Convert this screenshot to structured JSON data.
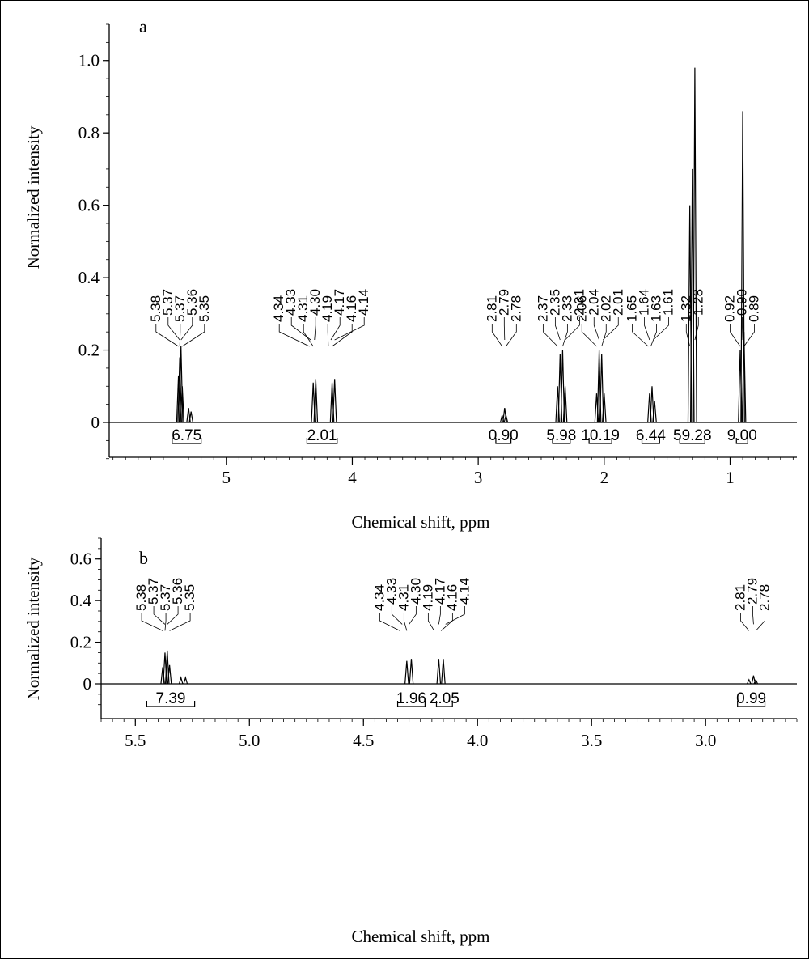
{
  "figure": {
    "border_color": "#000000"
  },
  "chart_data": [
    {
      "type": "line",
      "panel_label": "a",
      "xlabel": "Chemical shift, ppm",
      "ylabel": "Normalized intensity",
      "xlim": [
        5.93,
        0.47
      ],
      "ylim": [
        -0.1,
        1.1
      ],
      "x_ticks": [
        "5",
        "4",
        "3",
        "2",
        "1"
      ],
      "y_ticks": [
        "0",
        "0.2",
        "0.4",
        "0.6",
        "0.8",
        "1.0"
      ],
      "peaks": [
        {
          "x": 5.38,
          "h": 0.13
        },
        {
          "x": 5.37,
          "h": 0.18
        },
        {
          "x": 5.36,
          "h": 0.21
        },
        {
          "x": 5.35,
          "h": 0.1
        },
        {
          "x": 5.3,
          "h": 0.04
        },
        {
          "x": 5.28,
          "h": 0.03
        },
        {
          "x": 4.31,
          "h": 0.11
        },
        {
          "x": 4.29,
          "h": 0.12
        },
        {
          "x": 4.16,
          "h": 0.11
        },
        {
          "x": 4.14,
          "h": 0.12
        },
        {
          "x": 2.81,
          "h": 0.02
        },
        {
          "x": 2.79,
          "h": 0.04
        },
        {
          "x": 2.78,
          "h": 0.02
        },
        {
          "x": 2.37,
          "h": 0.1
        },
        {
          "x": 2.35,
          "h": 0.19
        },
        {
          "x": 2.33,
          "h": 0.2
        },
        {
          "x": 2.31,
          "h": 0.1
        },
        {
          "x": 2.06,
          "h": 0.08
        },
        {
          "x": 2.04,
          "h": 0.2
        },
        {
          "x": 2.02,
          "h": 0.19
        },
        {
          "x": 2.0,
          "h": 0.08
        },
        {
          "x": 1.64,
          "h": 0.08
        },
        {
          "x": 1.62,
          "h": 0.1
        },
        {
          "x": 1.6,
          "h": 0.06
        },
        {
          "x": 1.32,
          "h": 0.6
        },
        {
          "x": 1.3,
          "h": 0.7
        },
        {
          "x": 1.28,
          "h": 0.98
        },
        {
          "x": 0.9,
          "h": 0.86
        },
        {
          "x": 0.92,
          "h": 0.2
        },
        {
          "x": 0.89,
          "h": 0.25
        }
      ],
      "peak_labels": [
        {
          "text": "5.38",
          "x": 5.38
        },
        {
          "text": "5.37",
          "x": 5.37
        },
        {
          "text": "5.37",
          "x": 5.37
        },
        {
          "text": "5.36",
          "x": 5.36
        },
        {
          "text": "5.35",
          "x": 5.35
        },
        {
          "text": "4.34",
          "x": 4.34
        },
        {
          "text": "4.33",
          "x": 4.33
        },
        {
          "text": "4.31",
          "x": 4.31
        },
        {
          "text": "4.30",
          "x": 4.3
        },
        {
          "text": "4.19",
          "x": 4.19
        },
        {
          "text": "4.17",
          "x": 4.17
        },
        {
          "text": "4.16",
          "x": 4.16
        },
        {
          "text": "4.14",
          "x": 4.14
        },
        {
          "text": "2.81",
          "x": 2.81
        },
        {
          "text": "2.79",
          "x": 2.79
        },
        {
          "text": "2.78",
          "x": 2.78
        },
        {
          "text": "2.37",
          "x": 2.37
        },
        {
          "text": "2.35",
          "x": 2.35
        },
        {
          "text": "2.33",
          "x": 2.33
        },
        {
          "text": "2.31",
          "x": 2.31
        },
        {
          "text": "2.06",
          "x": 2.06
        },
        {
          "text": "2.04",
          "x": 2.04
        },
        {
          "text": "2.02",
          "x": 2.02
        },
        {
          "text": "2.01",
          "x": 2.01
        },
        {
          "text": "1.65",
          "x": 1.65
        },
        {
          "text": "1.64",
          "x": 1.64
        },
        {
          "text": "1.63",
          "x": 1.63
        },
        {
          "text": "1.61",
          "x": 1.61
        },
        {
          "text": "1.32",
          "x": 1.32
        },
        {
          "text": "1.28",
          "x": 1.28
        },
        {
          "text": "0.92",
          "x": 0.92
        },
        {
          "text": "0.90",
          "x": 0.9
        },
        {
          "text": "0.89",
          "x": 0.89
        }
      ],
      "integrals": [
        {
          "text": "6.75",
          "from": 5.43,
          "to": 5.2
        },
        {
          "text": "2.01",
          "from": 4.36,
          "to": 4.12
        },
        {
          "text": "0.90",
          "from": 2.86,
          "to": 2.74
        },
        {
          "text": "5.98",
          "from": 2.41,
          "to": 2.27
        },
        {
          "text": "10.19",
          "from": 2.12,
          "to": 1.94
        },
        {
          "text": "6.44",
          "from": 1.7,
          "to": 1.56
        },
        {
          "text": "59.28",
          "from": 1.4,
          "to": 1.2
        },
        {
          "text": "9.00",
          "from": 0.95,
          "to": 0.86
        }
      ]
    },
    {
      "type": "line",
      "panel_label": "b",
      "xlabel": "Chemical shift, ppm",
      "ylabel": "Normalized intensity",
      "xlim": [
        5.65,
        2.6
      ],
      "ylim": [
        -0.1,
        0.7
      ],
      "x_ticks": [
        "5.5",
        "5.0",
        "4.5",
        "4.0",
        "3.5",
        "3.0"
      ],
      "y_ticks": [
        "0",
        "0.2",
        "0.4",
        "0.6"
      ],
      "peaks": [
        {
          "x": 5.38,
          "h": 0.08
        },
        {
          "x": 5.37,
          "h": 0.15
        },
        {
          "x": 5.36,
          "h": 0.16
        },
        {
          "x": 5.35,
          "h": 0.09
        },
        {
          "x": 5.3,
          "h": 0.03
        },
        {
          "x": 5.28,
          "h": 0.03
        },
        {
          "x": 4.31,
          "h": 0.11
        },
        {
          "x": 4.29,
          "h": 0.12
        },
        {
          "x": 4.17,
          "h": 0.12
        },
        {
          "x": 4.15,
          "h": 0.12
        },
        {
          "x": 2.81,
          "h": 0.02
        },
        {
          "x": 2.79,
          "h": 0.04
        },
        {
          "x": 2.78,
          "h": 0.02
        }
      ],
      "peak_labels": [
        {
          "text": "5.38",
          "x": 5.38
        },
        {
          "text": "5.37",
          "x": 5.37
        },
        {
          "text": "5.37",
          "x": 5.37
        },
        {
          "text": "5.36",
          "x": 5.36
        },
        {
          "text": "5.35",
          "x": 5.35
        },
        {
          "text": "4.34",
          "x": 4.34
        },
        {
          "text": "4.33",
          "x": 4.33
        },
        {
          "text": "4.31",
          "x": 4.31
        },
        {
          "text": "4.30",
          "x": 4.3
        },
        {
          "text": "4.19",
          "x": 4.19
        },
        {
          "text": "4.17",
          "x": 4.17
        },
        {
          "text": "4.16",
          "x": 4.16
        },
        {
          "text": "4.14",
          "x": 4.14
        },
        {
          "text": "2.81",
          "x": 2.81
        },
        {
          "text": "2.79",
          "x": 2.79
        },
        {
          "text": "2.78",
          "x": 2.78
        }
      ],
      "integrals": [
        {
          "text": "7.39",
          "from": 5.45,
          "to": 5.24
        },
        {
          "text": "1.96",
          "from": 4.35,
          "to": 4.23
        },
        {
          "text": "2.05",
          "from": 4.18,
          "to": 4.11
        },
        {
          "text": "0.99",
          "from": 2.86,
          "to": 2.74
        }
      ]
    }
  ]
}
